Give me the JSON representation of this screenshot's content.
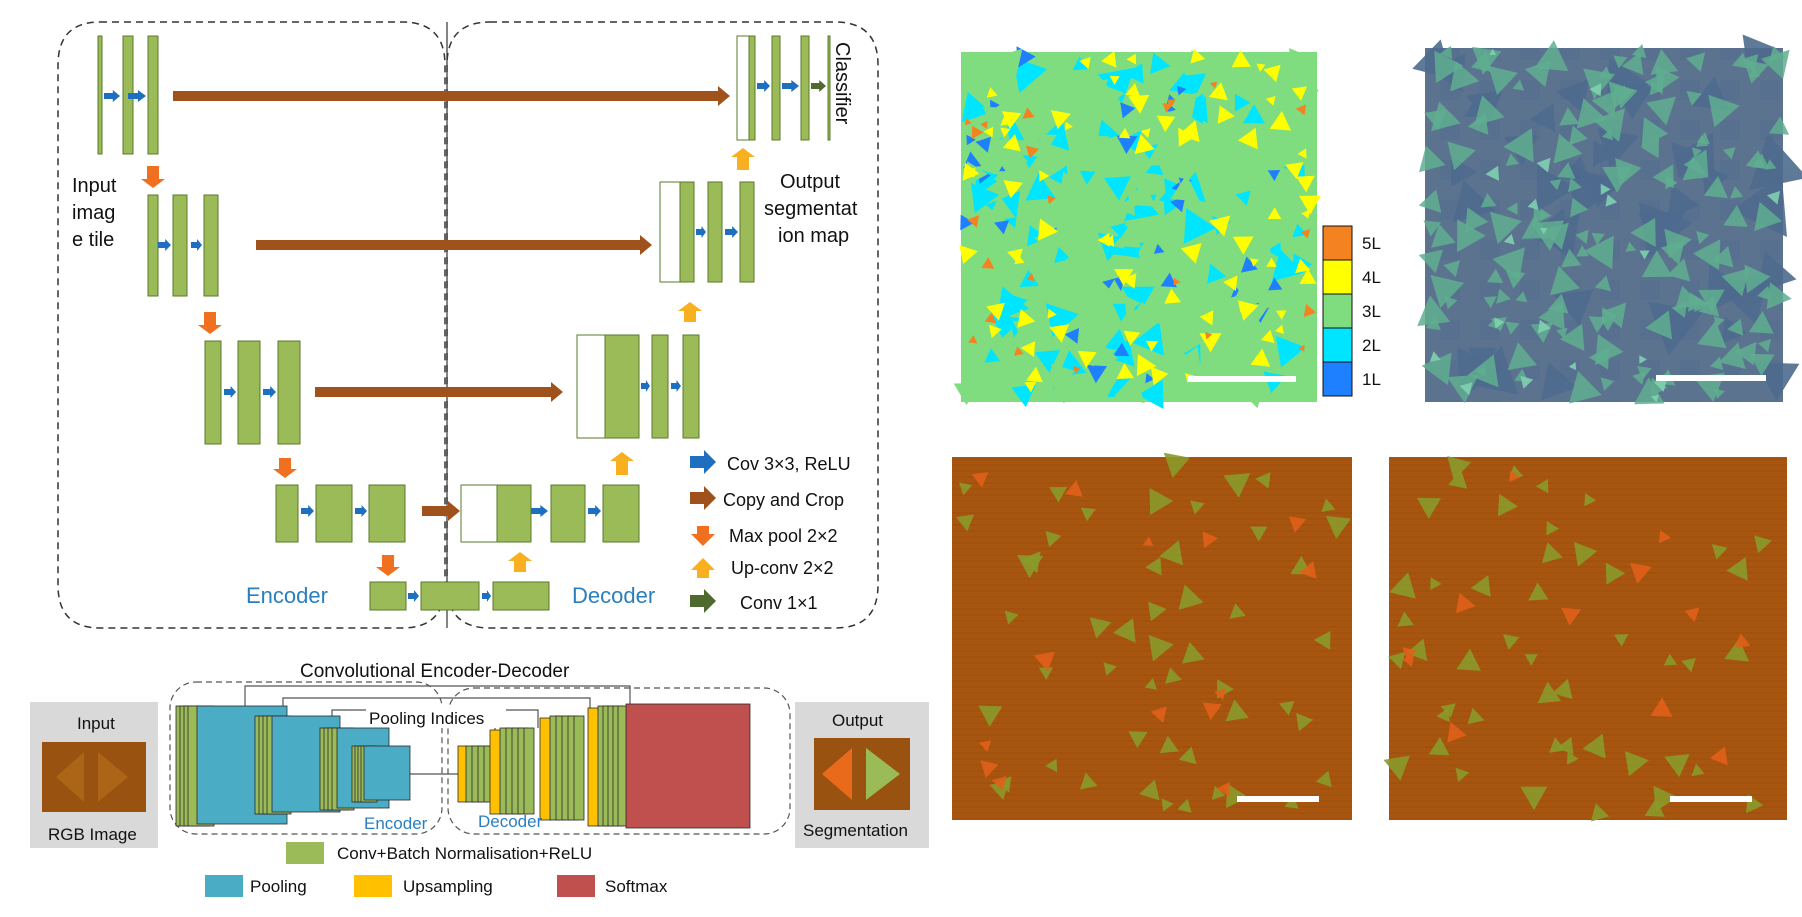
{
  "unet": {
    "input_label": [
      "Input",
      "imag",
      "e tile"
    ],
    "output_label": [
      "Output",
      "segmentat",
      "ion map"
    ],
    "classifier_label": "Classifier",
    "encoder_label": "Encoder",
    "decoder_label": "Decoder"
  },
  "legend": {
    "items": [
      {
        "label": "Cov 3×3, ReLU",
        "icon": "blue-arrow-icon",
        "color": "#1f6fc0"
      },
      {
        "label": "Copy and Crop",
        "icon": "brown-arrow-icon",
        "color": "#a0521c"
      },
      {
        "label": "Max pool 2×2",
        "icon": "orange-down-arrow-icon",
        "color": "#f07020"
      },
      {
        "label": "Up-conv 2×2",
        "icon": "yellow-up-arrow-icon",
        "color": "#f8b020"
      },
      {
        "label": "Conv 1×1",
        "icon": "darkgreen-arrow-icon",
        "color": "#4e6a2e"
      }
    ]
  },
  "segnet": {
    "title": "Convolutional Encoder-Decoder",
    "pooling_indices": "Pooling Indices",
    "encoder_label": "Encoder",
    "decoder_label": "Decoder",
    "input_top": "Input",
    "input_bottom": "RGB Image",
    "output_top": "Output",
    "output_bottom": "Segmentation",
    "legend_conv": "Conv+Batch Normalisation+ReLU",
    "legend_pooling": "Pooling",
    "legend_upsampling": "Upsampling",
    "legend_softmax": "Softmax",
    "colors": {
      "conv": "#9bbb59",
      "pooling": "#4bacc6",
      "upsampling": "#ffc000",
      "softmax": "#c0504d"
    }
  },
  "colorbar": {
    "labels": [
      "5L",
      "4L",
      "3L",
      "2L",
      "1L"
    ],
    "colors": [
      "#f58220",
      "#ffff00",
      "#7fdc7f",
      "#00e5ff",
      "#1e7fff"
    ]
  },
  "colors": {
    "block": "#9bbb59",
    "block_border": "#5a7a2a",
    "accent_blue": "#2a7fc0"
  }
}
